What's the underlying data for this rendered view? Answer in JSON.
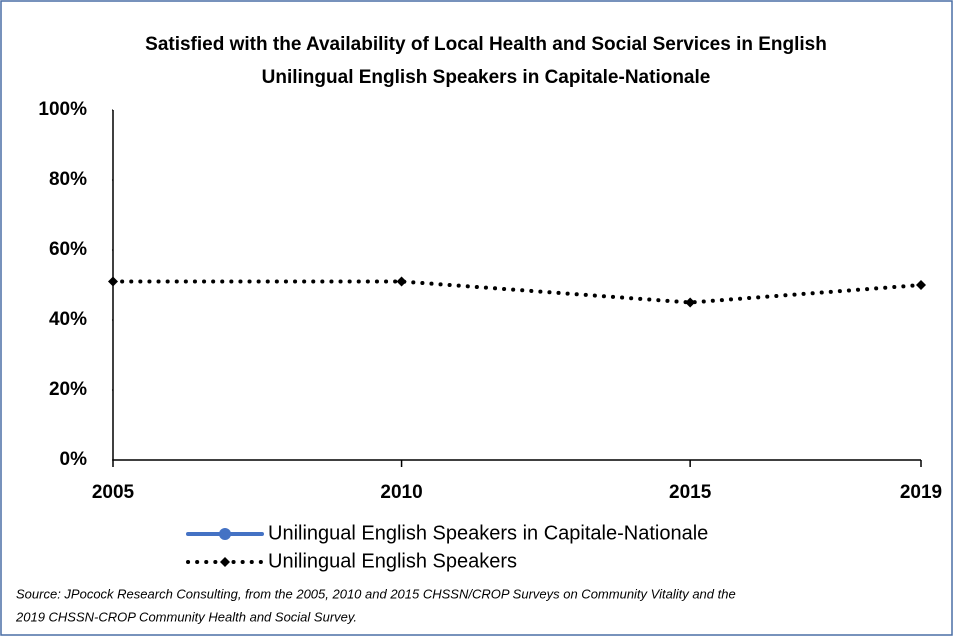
{
  "chart_data": {
    "type": "line",
    "title": [
      "Satisfied with the Availability of Local Health and Social Services in English",
      "Unilingual English Speakers in Capitale-Nationale"
    ],
    "x": [
      2005,
      2010,
      2015,
      2019
    ],
    "series": [
      {
        "name": "Unilingual English Speakers in Capitale-Nationale",
        "color": "#4472c4",
        "values": [
          null,
          null,
          null,
          null
        ]
      },
      {
        "name": "Unilingual English Speakers",
        "color": "#000000",
        "values": [
          51,
          51,
          45,
          50
        ]
      }
    ],
    "xlim": [
      2005,
      2019
    ],
    "xticks": [
      2005,
      2010,
      2015,
      2019
    ],
    "ylim": [
      0,
      100
    ],
    "yticks": [
      {
        "value": 0,
        "label": "0%"
      },
      {
        "value": 20,
        "label": "20%"
      },
      {
        "value": 40,
        "label": "40%"
      },
      {
        "value": 60,
        "label": "60%"
      },
      {
        "value": 80,
        "label": "80%"
      },
      {
        "value": 100,
        "label": "100%"
      }
    ],
    "grid": false,
    "legend": "bottom",
    "source": [
      "Source: JPocock Research Consulting, from the 2005, 2010  and 2015  CHSSN/CROP Surveys on Community Vitality and the",
      "2019  CHSSN-CROP Community Health and Social Survey."
    ]
  }
}
